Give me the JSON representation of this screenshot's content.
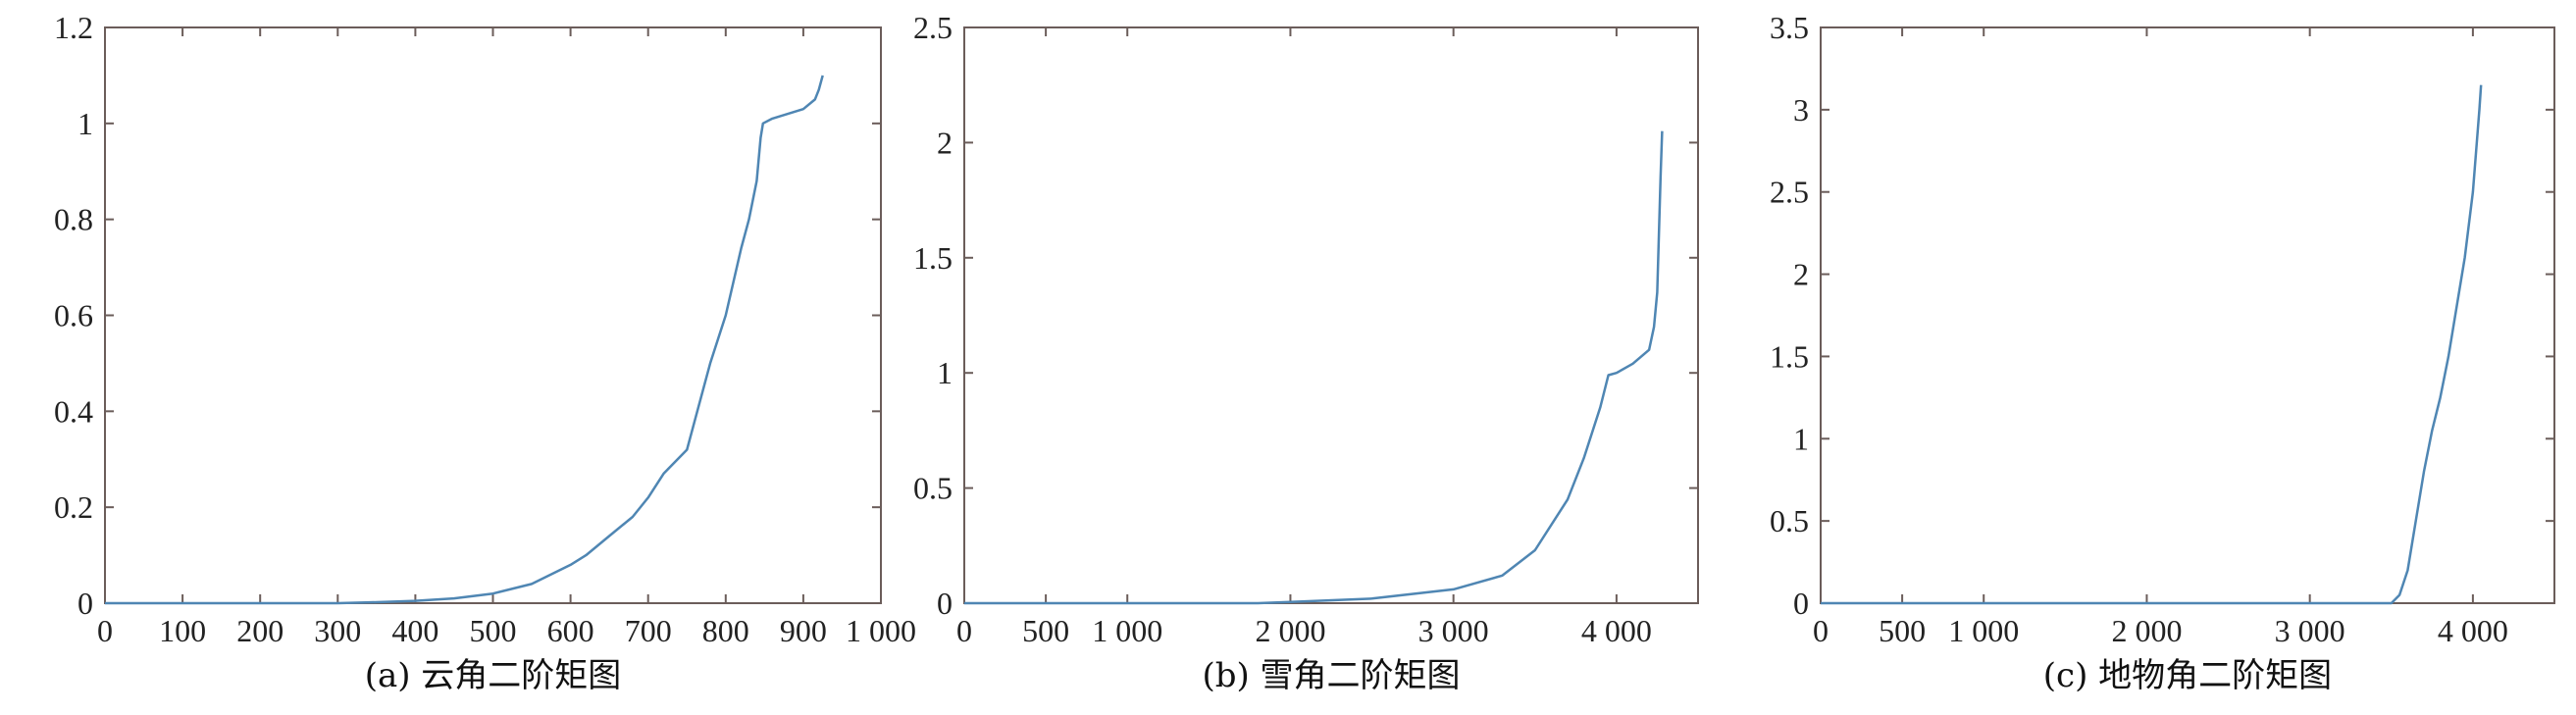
{
  "chart_data": [
    {
      "type": "line",
      "caption": "(a) 云角二阶矩图",
      "xlim": [
        0,
        1000
      ],
      "ylim": [
        0,
        1.2
      ],
      "xticks": [
        0,
        100,
        200,
        300,
        400,
        500,
        600,
        700,
        800,
        900,
        1000
      ],
      "xtick_labels": [
        "0",
        "100",
        "200",
        "300",
        "400",
        "500",
        "600",
        "700",
        "800",
        "900",
        "1 000"
      ],
      "yticks": [
        0,
        0.2,
        0.4,
        0.6,
        0.8,
        1,
        1.2
      ],
      "ytick_labels": [
        "0",
        "0.2",
        "0.4",
        "0.6",
        "0.8",
        "1",
        "1.2"
      ],
      "series": [
        {
          "color": "#4f86b3",
          "x": [
            0,
            300,
            350,
            400,
            450,
            500,
            550,
            600,
            620,
            650,
            680,
            700,
            720,
            750,
            760,
            780,
            800,
            820,
            830,
            840,
            845,
            848,
            860,
            900,
            915,
            920,
            925
          ],
          "y": [
            0,
            0,
            0.002,
            0.005,
            0.01,
            0.02,
            0.04,
            0.08,
            0.1,
            0.14,
            0.18,
            0.22,
            0.27,
            0.32,
            0.38,
            0.5,
            0.6,
            0.74,
            0.8,
            0.88,
            0.97,
            1.0,
            1.01,
            1.03,
            1.05,
            1.07,
            1.1
          ]
        }
      ]
    },
    {
      "type": "line",
      "caption": "(b) 雪角二阶矩图",
      "xlim": [
        0,
        4500
      ],
      "ylim": [
        0,
        2.5
      ],
      "xticks": [
        0,
        500,
        1000,
        2000,
        3000,
        4000
      ],
      "xtick_labels": [
        "0",
        "500",
        "1 000",
        "2 000",
        "3 000",
        "4 000"
      ],
      "yticks": [
        0,
        0.5,
        1,
        1.5,
        2,
        2.5
      ],
      "ytick_labels": [
        "0",
        "0.5",
        "1",
        "1.5",
        "2",
        "2.5"
      ],
      "series": [
        {
          "color": "#4f86b3",
          "x": [
            0,
            1800,
            2000,
            2500,
            3000,
            3300,
            3500,
            3700,
            3800,
            3900,
            3950,
            4000,
            4100,
            4200,
            4230,
            4250,
            4260,
            4270,
            4280
          ],
          "y": [
            0,
            0,
            0.005,
            0.02,
            0.06,
            0.12,
            0.23,
            0.45,
            0.63,
            0.85,
            0.99,
            1.0,
            1.04,
            1.1,
            1.2,
            1.35,
            1.6,
            1.85,
            2.05
          ]
        }
      ]
    },
    {
      "type": "line",
      "caption": "(c) 地物角二阶矩图",
      "xlim": [
        0,
        4500
      ],
      "ylim": [
        0,
        3.5
      ],
      "xticks": [
        0,
        500,
        1000,
        2000,
        3000,
        4000
      ],
      "xtick_labels": [
        "0",
        "500",
        "1 000",
        "2 000",
        "3 000",
        "4 000"
      ],
      "yticks": [
        0,
        0.5,
        1,
        1.5,
        2,
        2.5,
        3,
        3.5
      ],
      "ytick_labels": [
        "0",
        "0.5",
        "1",
        "1.5",
        "2",
        "2.5",
        "3",
        "3.5"
      ],
      "series": [
        {
          "color": "#4f86b3",
          "x": [
            0,
            3500,
            3550,
            3600,
            3650,
            3700,
            3750,
            3800,
            3850,
            3900,
            3950,
            4000,
            4020,
            4040,
            4050
          ],
          "y": [
            0,
            0,
            0.05,
            0.2,
            0.5,
            0.8,
            1.05,
            1.25,
            1.5,
            1.8,
            2.1,
            2.5,
            2.75,
            3.0,
            3.15
          ]
        }
      ]
    }
  ]
}
